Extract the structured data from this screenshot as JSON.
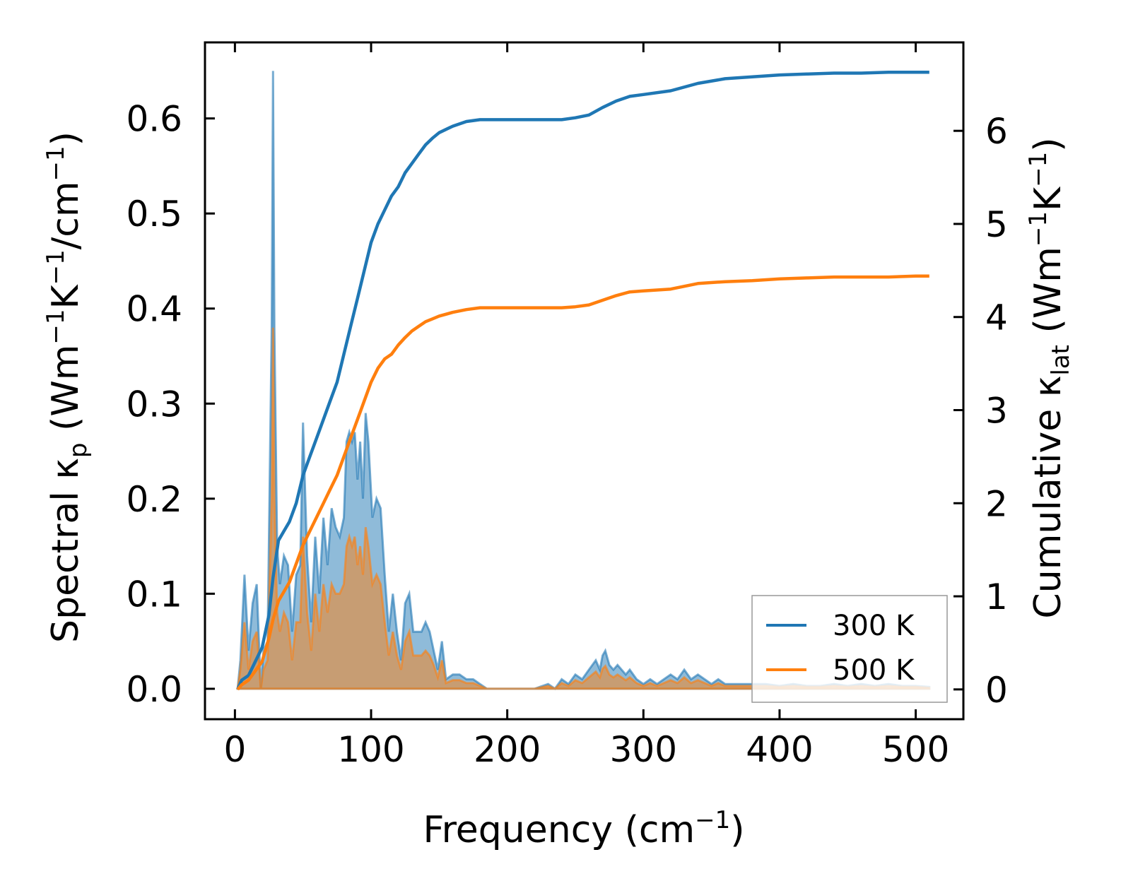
{
  "chart_data": {
    "type": "line",
    "xlabel": "Frequency (cm",
    "xlabel_sup": "−1",
    "xlabel_tail": ")",
    "ylabel_left": {
      "prefix": "Spectral κ",
      "sub": "p",
      "mid1": " (Wm",
      "sup1": "−1",
      "mid2": "K",
      "sup2": "−1",
      "mid3": "/cm",
      "sup3": "−1",
      "suffix": ")"
    },
    "ylabel_right": {
      "prefix": "Cumulative κ",
      "sub": "lat",
      "mid1": " (Wm",
      "sup1": "−1",
      "mid2": "K",
      "sup2": "−1",
      "suffix": ")"
    },
    "xlim": [
      -22,
      535
    ],
    "ylim_left": [
      -0.032,
      0.68
    ],
    "ylim_right": [
      -0.32,
      6.95
    ],
    "x_ticks": [
      0,
      100,
      200,
      300,
      400,
      500
    ],
    "y_left_ticks": [
      0.0,
      0.1,
      0.2,
      0.3,
      0.4,
      0.5,
      0.6
    ],
    "y_right_ticks": [
      0,
      1,
      2,
      3,
      4,
      5,
      6
    ],
    "x_tick_labels": [
      "0",
      "100",
      "200",
      "300",
      "400",
      "500"
    ],
    "y_left_tick_labels": [
      "0.0",
      "0.1",
      "0.2",
      "0.3",
      "0.4",
      "0.5",
      "0.6"
    ],
    "y_right_tick_labels": [
      "0",
      "1",
      "2",
      "3",
      "4",
      "5",
      "6"
    ],
    "legend": {
      "position": "lower-right",
      "entries": [
        "300 K",
        "500 K"
      ]
    },
    "colors": {
      "s300": "#1f77b4",
      "s500": "#ff7f0e"
    },
    "spectral": {
      "x": [
        2,
        4,
        7,
        10,
        13,
        16,
        19,
        21,
        24,
        27,
        28,
        29,
        31,
        33,
        36,
        39,
        42,
        45,
        48,
        50,
        53,
        56,
        59,
        62,
        65,
        68,
        71,
        74,
        77,
        80,
        82,
        84,
        86,
        88,
        90,
        92,
        94,
        96,
        98,
        101,
        104,
        107,
        110,
        113,
        116,
        119,
        122,
        125,
        128,
        131,
        134,
        137,
        140,
        143,
        146,
        149,
        152,
        155,
        160,
        165,
        170,
        175,
        180,
        185,
        190,
        200,
        210,
        220,
        230,
        235,
        240,
        245,
        250,
        255,
        260,
        265,
        268,
        270,
        272,
        275,
        278,
        281,
        284,
        287,
        290,
        295,
        300,
        305,
        310,
        315,
        320,
        325,
        330,
        335,
        340,
        345,
        350,
        355,
        360,
        370,
        380,
        390,
        400,
        410,
        420,
        430,
        440,
        450,
        460,
        470,
        480,
        490,
        500,
        510
      ],
      "s300": [
        0.0,
        0.03,
        0.12,
        0.04,
        0.09,
        0.11,
        0.0,
        0.04,
        0.05,
        0.38,
        0.65,
        0.38,
        0.15,
        0.11,
        0.14,
        0.13,
        0.06,
        0.12,
        0.13,
        0.28,
        0.14,
        0.07,
        0.16,
        0.1,
        0.18,
        0.13,
        0.19,
        0.17,
        0.16,
        0.18,
        0.26,
        0.27,
        0.26,
        0.27,
        0.22,
        0.26,
        0.2,
        0.29,
        0.26,
        0.18,
        0.2,
        0.19,
        0.12,
        0.06,
        0.1,
        0.06,
        0.03,
        0.09,
        0.1,
        0.06,
        0.06,
        0.06,
        0.07,
        0.06,
        0.04,
        0.02,
        0.05,
        0.01,
        0.015,
        0.015,
        0.01,
        0.01,
        0.005,
        0.0,
        0.0,
        0.0,
        0.0,
        0.0,
        0.005,
        0.0,
        0.01,
        0.005,
        0.015,
        0.01,
        0.02,
        0.03,
        0.02,
        0.035,
        0.04,
        0.025,
        0.02,
        0.025,
        0.02,
        0.015,
        0.02,
        0.01,
        0.005,
        0.01,
        0.005,
        0.01,
        0.015,
        0.01,
        0.02,
        0.01,
        0.015,
        0.01,
        0.005,
        0.01,
        0.005,
        0.005,
        0.005,
        0.005,
        0.003,
        0.005,
        0.003,
        0.003,
        0.005,
        0.003,
        0.005,
        0.003,
        0.005,
        0.003,
        0.003,
        0.002
      ],
      "s500": [
        0.0,
        0.02,
        0.07,
        0.02,
        0.05,
        0.06,
        0.0,
        0.02,
        0.03,
        0.2,
        0.38,
        0.2,
        0.08,
        0.06,
        0.08,
        0.07,
        0.03,
        0.07,
        0.07,
        0.16,
        0.08,
        0.04,
        0.1,
        0.06,
        0.11,
        0.08,
        0.11,
        0.1,
        0.1,
        0.11,
        0.15,
        0.16,
        0.15,
        0.16,
        0.13,
        0.15,
        0.12,
        0.17,
        0.15,
        0.11,
        0.12,
        0.11,
        0.07,
        0.035,
        0.06,
        0.035,
        0.02,
        0.05,
        0.06,
        0.035,
        0.035,
        0.035,
        0.04,
        0.035,
        0.025,
        0.012,
        0.03,
        0.006,
        0.009,
        0.009,
        0.006,
        0.006,
        0.003,
        0.0,
        0.0,
        0.0,
        0.0,
        0.0,
        0.003,
        0.0,
        0.006,
        0.003,
        0.009,
        0.006,
        0.012,
        0.018,
        0.012,
        0.021,
        0.024,
        0.015,
        0.012,
        0.015,
        0.012,
        0.009,
        0.012,
        0.006,
        0.003,
        0.006,
        0.003,
        0.006,
        0.009,
        0.006,
        0.012,
        0.006,
        0.009,
        0.006,
        0.003,
        0.006,
        0.003,
        0.003,
        0.003,
        0.003,
        0.002,
        0.003,
        0.002,
        0.002,
        0.003,
        0.002,
        0.003,
        0.002,
        0.003,
        0.002,
        0.002,
        0.001
      ]
    },
    "cumulative": {
      "x": [
        2,
        5,
        10,
        15,
        20,
        25,
        28,
        32,
        36,
        40,
        45,
        50,
        55,
        60,
        65,
        70,
        75,
        80,
        85,
        90,
        95,
        100,
        105,
        110,
        115,
        120,
        125,
        130,
        135,
        140,
        145,
        150,
        160,
        170,
        180,
        190,
        200,
        220,
        240,
        250,
        260,
        270,
        280,
        290,
        300,
        320,
        340,
        360,
        380,
        400,
        420,
        440,
        460,
        480,
        500,
        510
      ],
      "s300": [
        0.0,
        0.1,
        0.15,
        0.3,
        0.45,
        0.8,
        1.2,
        1.6,
        1.7,
        1.8,
        2.0,
        2.3,
        2.5,
        2.7,
        2.9,
        3.1,
        3.3,
        3.6,
        3.9,
        4.2,
        4.5,
        4.8,
        5.0,
        5.15,
        5.3,
        5.4,
        5.55,
        5.65,
        5.75,
        5.85,
        5.92,
        5.98,
        6.05,
        6.1,
        6.12,
        6.12,
        6.12,
        6.12,
        6.12,
        6.14,
        6.17,
        6.25,
        6.32,
        6.37,
        6.39,
        6.43,
        6.51,
        6.56,
        6.58,
        6.6,
        6.61,
        6.62,
        6.62,
        6.63,
        6.63,
        6.63
      ],
      "s500": [
        0.0,
        0.05,
        0.1,
        0.2,
        0.3,
        0.55,
        0.75,
        0.95,
        1.05,
        1.15,
        1.35,
        1.55,
        1.7,
        1.85,
        2.0,
        2.15,
        2.3,
        2.5,
        2.7,
        2.9,
        3.1,
        3.3,
        3.45,
        3.55,
        3.6,
        3.7,
        3.78,
        3.85,
        3.9,
        3.95,
        3.98,
        4.01,
        4.05,
        4.08,
        4.1,
        4.1,
        4.1,
        4.1,
        4.1,
        4.11,
        4.13,
        4.18,
        4.23,
        4.27,
        4.28,
        4.3,
        4.36,
        4.38,
        4.39,
        4.41,
        4.42,
        4.43,
        4.43,
        4.43,
        4.44,
        4.44
      ]
    }
  }
}
